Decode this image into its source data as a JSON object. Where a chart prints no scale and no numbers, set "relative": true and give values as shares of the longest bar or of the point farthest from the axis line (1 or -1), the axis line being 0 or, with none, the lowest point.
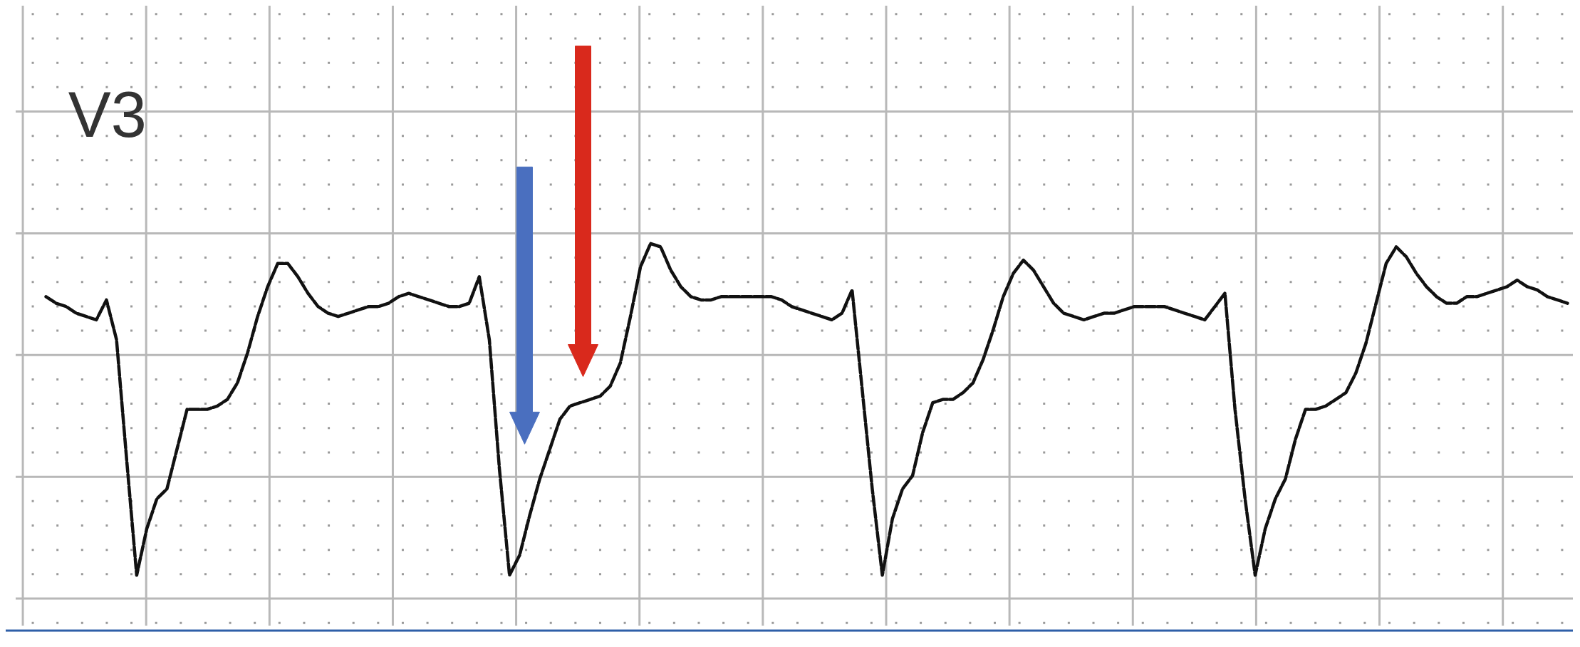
{
  "chart_data": {
    "type": "line",
    "title": "V3",
    "relative": true,
    "grid": true,
    "color": "#111111",
    "line_style": "dashed",
    "categories": [
      null,
      null,
      null,
      null,
      null,
      null,
      null,
      null,
      null,
      null,
      null,
      null,
      null,
      null,
      null,
      null,
      null,
      null,
      null,
      null,
      null,
      null,
      null,
      null,
      null,
      null,
      null,
      null,
      null,
      null,
      null,
      null,
      null,
      null,
      null,
      null,
      null,
      null,
      null,
      null,
      null,
      null,
      null,
      null,
      null,
      null,
      null,
      null,
      null,
      null,
      null,
      null,
      null,
      null,
      null,
      null,
      null,
      null,
      null,
      null,
      null,
      null,
      null,
      null,
      null,
      null,
      null,
      null,
      null,
      null,
      null,
      null,
      null,
      null,
      null,
      null,
      null,
      null,
      null,
      null,
      null,
      null,
      null,
      null,
      null,
      null,
      null,
      null,
      null,
      null,
      null,
      null,
      null,
      null,
      null,
      null,
      null,
      null,
      null,
      null,
      null,
      null,
      null,
      null,
      null,
      null,
      null,
      null,
      null,
      null,
      null,
      null,
      null,
      null,
      null,
      null,
      null,
      null,
      null,
      null,
      null,
      null,
      null,
      null,
      null,
      null,
      null,
      null,
      null,
      null,
      null,
      null,
      null,
      null,
      null,
      null,
      null,
      null,
      null,
      null,
      null,
      null,
      null,
      null,
      null,
      null,
      null,
      null,
      null,
      null,
      null,
      null
    ],
    "values": [
      0.84,
      0.82,
      0.81,
      0.79,
      0.78,
      0.77,
      0.83,
      0.71,
      0.35,
      0,
      0.14,
      0.23,
      0.26,
      0.38,
      0.5,
      0.5,
      0.5,
      0.51,
      0.53,
      0.58,
      0.67,
      0.78,
      0.87,
      0.94,
      0.94,
      0.9,
      0.85,
      0.81,
      0.79,
      0.78,
      0.79,
      0.8,
      0.81,
      0.81,
      0.82,
      0.84,
      0.85,
      0.84,
      0.83,
      0.82,
      0.81,
      0.81,
      0.82,
      0.9,
      0.71,
      0.32,
      0,
      0.06,
      0.18,
      0.29,
      0.38,
      0.47,
      0.51,
      0.52,
      0.53,
      0.54,
      0.57,
      0.64,
      0.78,
      0.93,
      1,
      0.99,
      0.92,
      0.87,
      0.84,
      0.83,
      0.83,
      0.84,
      0.84,
      0.84,
      0.84,
      0.84,
      0.84,
      0.83,
      0.81,
      0.8,
      0.79,
      0.78,
      0.77,
      0.79,
      0.86,
      0.56,
      0.26,
      0,
      0.17,
      0.26,
      0.3,
      0.43,
      0.52,
      0.53,
      0.53,
      0.55,
      0.58,
      0.65,
      0.74,
      0.84,
      0.91,
      0.95,
      0.92,
      0.87,
      0.82,
      0.79,
      0.78,
      0.77,
      0.78,
      0.79,
      0.79,
      0.8,
      0.81,
      0.81,
      0.81,
      0.81,
      0.8,
      0.79,
      0.78,
      0.77,
      0.81,
      0.85,
      0.5,
      0.23,
      0,
      0.14,
      0.23,
      0.29,
      0.41,
      0.5,
      0.5,
      0.51,
      0.53,
      0.55,
      0.61,
      0.7,
      0.82,
      0.94,
      0.99,
      0.96,
      0.91,
      0.87,
      0.84,
      0.82,
      0.82,
      0.84,
      0.84,
      0.85,
      0.86,
      0.87,
      0.89,
      0.87,
      0.86,
      0.84,
      0.83,
      0.82
    ]
  }
}
